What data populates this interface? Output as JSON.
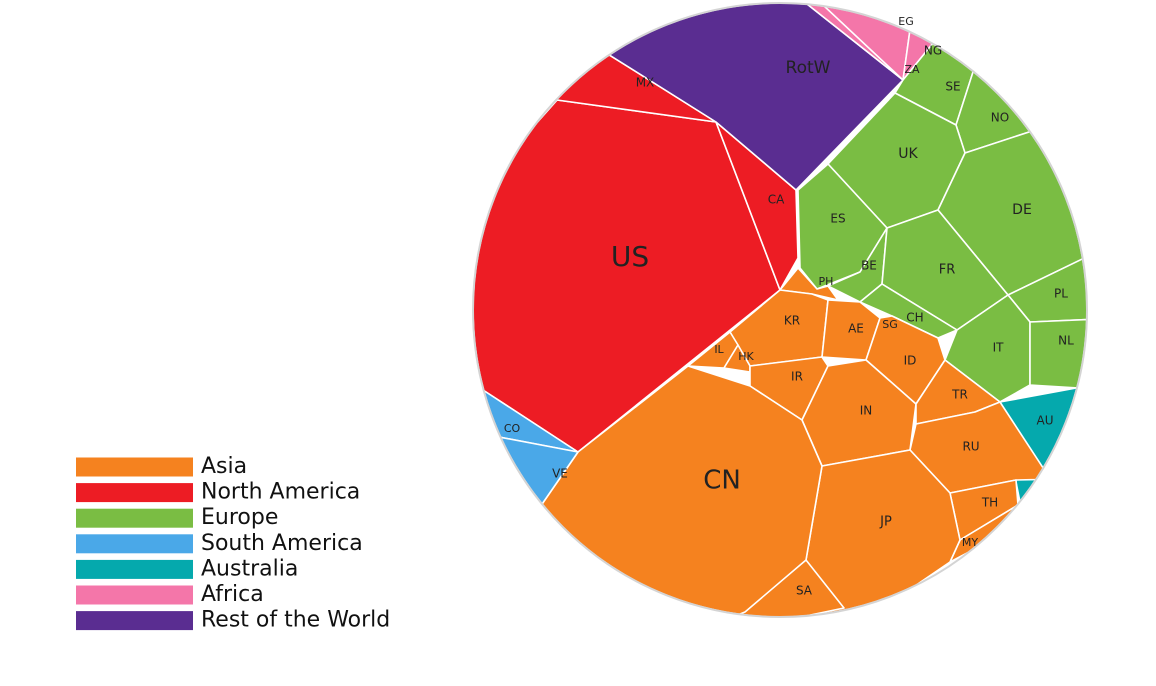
{
  "chart_data": {
    "type": "voronoi-treemap",
    "colors": {
      "Asia": "#f5821f",
      "North America": "#ed1c24",
      "Europe": "#7abd43",
      "South America": "#4aa8e8",
      "Australia": "#05a9ad",
      "Africa": "#f476a9",
      "Rest of the World": "#5a2d91"
    },
    "legend": [
      "Asia",
      "North America",
      "Europe",
      "South America",
      "Australia",
      "Africa",
      "Rest of the World"
    ],
    "cells": [
      {
        "label": "US",
        "region": "North America"
      },
      {
        "label": "MX",
        "region": "North America"
      },
      {
        "label": "CA",
        "region": "North America"
      },
      {
        "label": "RotW",
        "region": "Rest of the World"
      },
      {
        "label": "EG",
        "region": "Africa"
      },
      {
        "label": "NG",
        "region": "Africa"
      },
      {
        "label": "ZA",
        "region": "Africa"
      },
      {
        "label": "SE",
        "region": "Europe"
      },
      {
        "label": "NO",
        "region": "Europe"
      },
      {
        "label": "UK",
        "region": "Europe"
      },
      {
        "label": "DE",
        "region": "Europe"
      },
      {
        "label": "ES",
        "region": "Europe"
      },
      {
        "label": "BE",
        "region": "Europe"
      },
      {
        "label": "FR",
        "region": "Europe"
      },
      {
        "label": "PL",
        "region": "Europe"
      },
      {
        "label": "CH",
        "region": "Europe"
      },
      {
        "label": "IT",
        "region": "Europe"
      },
      {
        "label": "NL",
        "region": "Europe"
      },
      {
        "label": "AU",
        "region": "Australia"
      },
      {
        "label": "PH",
        "region": "Asia"
      },
      {
        "label": "KR",
        "region": "Asia"
      },
      {
        "label": "AE",
        "region": "Asia"
      },
      {
        "label": "SG",
        "region": "Asia"
      },
      {
        "label": "IL",
        "region": "Asia"
      },
      {
        "label": "HK",
        "region": "Asia"
      },
      {
        "label": "IR",
        "region": "Asia"
      },
      {
        "label": "ID",
        "region": "Asia"
      },
      {
        "label": "IN",
        "region": "Asia"
      },
      {
        "label": "TR",
        "region": "Asia"
      },
      {
        "label": "RU",
        "region": "Asia"
      },
      {
        "label": "TH",
        "region": "Asia"
      },
      {
        "label": "MY",
        "region": "Asia"
      },
      {
        "label": "JP",
        "region": "Asia"
      },
      {
        "label": "SA",
        "region": "Asia"
      },
      {
        "label": "CN",
        "region": "Asia"
      },
      {
        "label": "CO",
        "region": "South America"
      },
      {
        "label": "VE",
        "region": "South America"
      }
    ]
  }
}
